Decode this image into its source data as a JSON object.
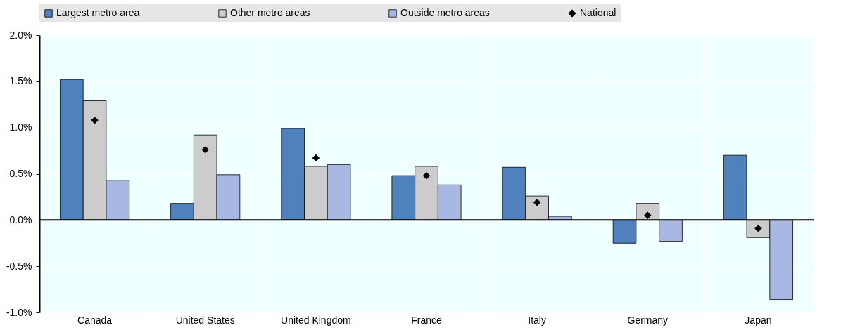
{
  "chart_data": {
    "type": "bar",
    "categories": [
      "Canada",
      "United States",
      "United Kingdom",
      "France",
      "Italy",
      "Germany",
      "Japan"
    ],
    "series": [
      {
        "name": "Largest metro area",
        "color": "#4f81bd",
        "values": [
          1.52,
          0.18,
          0.99,
          0.48,
          0.57,
          -0.25,
          0.7
        ]
      },
      {
        "name": "Other metro areas",
        "color": "#cccccc",
        "values": [
          1.29,
          0.92,
          0.58,
          0.58,
          0.26,
          0.18,
          -0.19
        ]
      },
      {
        "name": "Outside metro areas",
        "color": "#a9b8e3",
        "values": [
          0.43,
          0.49,
          0.6,
          0.38,
          0.04,
          -0.23,
          -0.86
        ]
      },
      {
        "name": "National",
        "type": "scatter",
        "marker": "diamond",
        "color": "#000000",
        "values": [
          1.08,
          0.76,
          0.67,
          0.48,
          0.19,
          0.05,
          -0.09
        ]
      }
    ],
    "ylim": [
      -1,
      2
    ],
    "yticks": [
      {
        "value": -1,
        "label": "-1.0%"
      },
      {
        "value": -0.5,
        "label": "-0.5%"
      },
      {
        "value": 0,
        "label": "0.0%"
      },
      {
        "value": 0.5,
        "label": "0.5%"
      },
      {
        "value": 1,
        "label": "1.0%"
      },
      {
        "value": 1.5,
        "label": "1.5%"
      },
      {
        "value": 2,
        "label": "2.0%"
      }
    ],
    "grid": true,
    "legend": "top"
  }
}
